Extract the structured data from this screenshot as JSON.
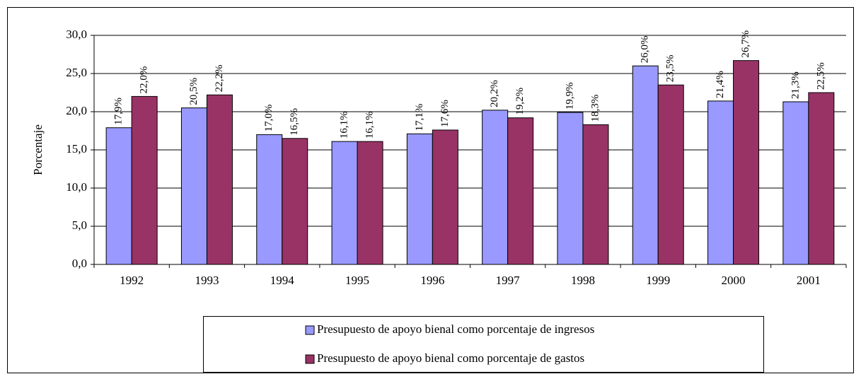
{
  "chart_data": {
    "type": "bar",
    "y_label": "Porcentaje",
    "categories": [
      "1992",
      "1993",
      "1994",
      "1995",
      "1996",
      "1997",
      "1998",
      "1999",
      "2000",
      "2001"
    ],
    "series": [
      {
        "name": "Presupuesto de apoyo bienal como porcentaje de ingresos",
        "color": "#9999ff",
        "values": [
          17.9,
          20.5,
          17.0,
          16.1,
          17.1,
          20.2,
          19.9,
          26.0,
          21.4,
          21.3
        ],
        "value_labels": [
          "17,9%",
          "20,5%",
          "17,0%",
          "16,1%",
          "17,1%",
          "20,2%",
          "19,9%",
          "26,0%",
          "21,4%",
          "21,3%"
        ]
      },
      {
        "name": "Presupuesto de apoyo bienal como porcentaje de gastos",
        "color": "#993366",
        "values": [
          22.0,
          22.2,
          16.5,
          16.1,
          17.6,
          19.2,
          18.3,
          23.5,
          26.7,
          22.5
        ],
        "value_labels": [
          "22,0%",
          "22,2%",
          "16,5%",
          "16,1%",
          "17,6%",
          "19,2%",
          "18,3%",
          "23,5%",
          "26,7%",
          "22,5%"
        ]
      }
    ],
    "ylim": [
      0,
      30
    ],
    "yticks": [
      {
        "value": 0,
        "label": "0,0"
      },
      {
        "value": 5,
        "label": "5,0"
      },
      {
        "value": 10,
        "label": "10,0"
      },
      {
        "value": 15,
        "label": "15,0"
      },
      {
        "value": 20,
        "label": "20,0"
      },
      {
        "value": 25,
        "label": "25,0"
      },
      {
        "value": 30,
        "label": "30,0"
      }
    ],
    "grid": true,
    "legend": "bottom"
  }
}
